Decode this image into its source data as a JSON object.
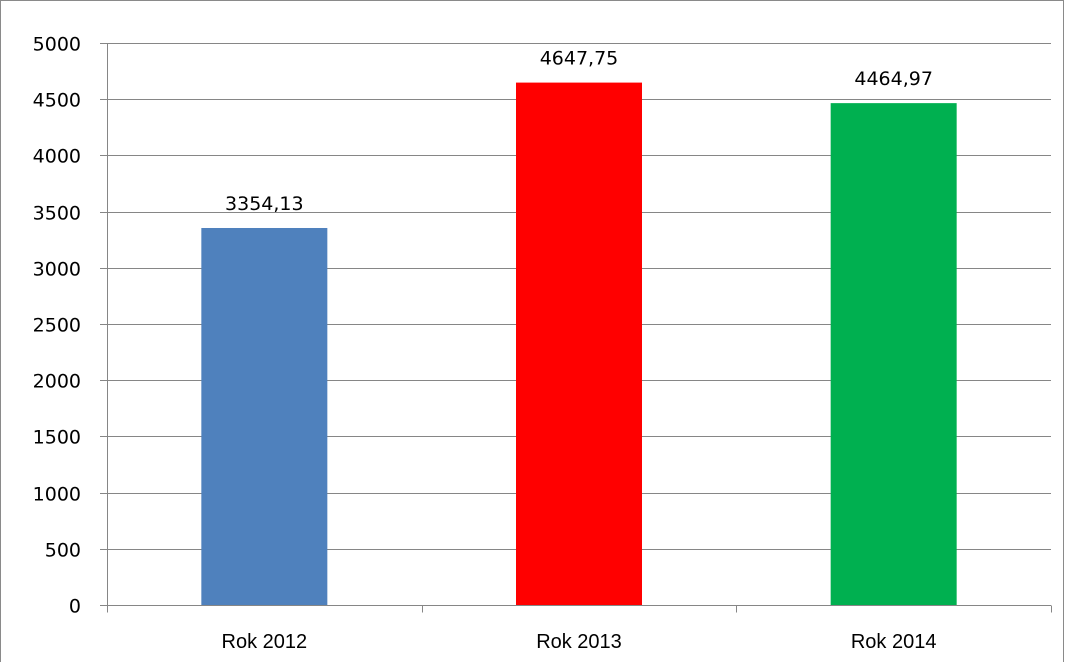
{
  "chart_data": {
    "type": "bar",
    "categories": [
      "Rok 2012",
      "Rok 2013",
      "Rok 2014"
    ],
    "values": [
      3354.13,
      4647.75,
      4464.97
    ],
    "value_labels": [
      "3354,13",
      "4647,75",
      "4464,97"
    ],
    "colors": [
      "#4f81bd",
      "#ff0000",
      "#00b050"
    ],
    "title": "",
    "xlabel": "",
    "ylabel": "",
    "ylim": [
      0,
      5000
    ],
    "yticks": [
      0,
      500,
      1000,
      1500,
      2000,
      2500,
      3000,
      3500,
      4000,
      4500,
      5000
    ],
    "grid": true,
    "legend": "none"
  }
}
